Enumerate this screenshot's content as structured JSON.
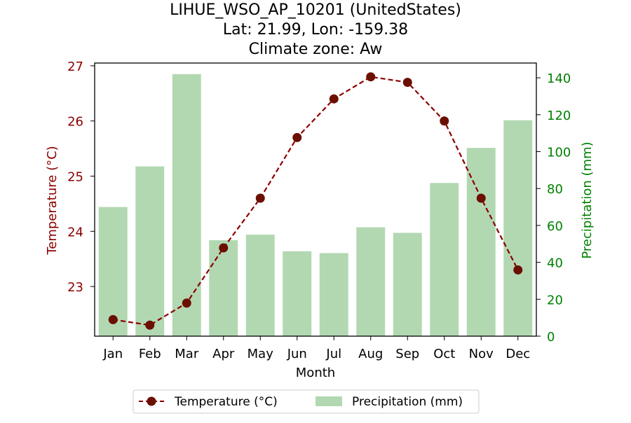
{
  "colors": {
    "temperature": "#8b0000",
    "temperature_marker": "#6b0f00",
    "precipitation": "#b2d8b2",
    "left_axis_text": "#8b0000",
    "right_axis_text": "#008000"
  },
  "chart_data": {
    "type": "bar",
    "title_lines": [
      "LIHUE_WSO_AP_10201 (UnitedStates)",
      "Lat: 21.99, Lon: -159.38",
      "Climate zone: Aw"
    ],
    "xlabel": "Month",
    "ylabel_left": "Temperature (°C)",
    "ylabel_right": "Precipitation (mm)",
    "categories": [
      "Jan",
      "Feb",
      "Mar",
      "Apr",
      "May",
      "Jun",
      "Jul",
      "Aug",
      "Sep",
      "Oct",
      "Nov",
      "Dec"
    ],
    "y_left_ticks": [
      "23",
      "24",
      "25",
      "26",
      "27"
    ],
    "y_right_ticks": [
      "0",
      "20",
      "40",
      "60",
      "80",
      "100",
      "120",
      "140"
    ],
    "ylim_left": [
      22.1,
      27.05
    ],
    "ylim_right": [
      0,
      148
    ],
    "legend_placement": "bottom-center",
    "series": [
      {
        "name": "Precipitation (mm)",
        "type": "bar",
        "axis": "right",
        "values": [
          70,
          92,
          142,
          52,
          55,
          46,
          45,
          59,
          56,
          83,
          102,
          117
        ]
      },
      {
        "name": "Temperature (°C)",
        "type": "line",
        "axis": "left",
        "style": "dashed",
        "values": [
          22.4,
          22.3,
          22.7,
          23.7,
          24.6,
          25.7,
          26.4,
          26.8,
          26.7,
          26.0,
          24.6,
          23.3
        ]
      }
    ]
  }
}
